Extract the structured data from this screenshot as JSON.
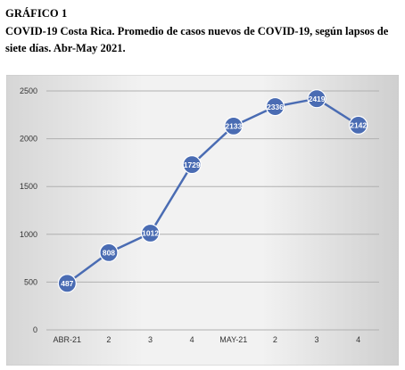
{
  "figure": {
    "label": "GRÁFICO 1",
    "caption": "COVID-19 Costa Rica. Promedio de casos nuevos de COVID-19, según lapsos de siete días. Abr-May 2021."
  },
  "chart_data": {
    "type": "line",
    "title": "",
    "xlabel": "",
    "ylabel": "",
    "categories": [
      "ABR-21",
      "2",
      "3",
      "4",
      "MAY-21",
      "2",
      "3",
      "4"
    ],
    "series": [
      {
        "values": [
          487,
          808,
          1012,
          1729,
          2133,
          2336,
          2419,
          2142
        ]
      }
    ],
    "ylim": [
      0,
      2500
    ],
    "yticks": [
      0,
      500,
      1000,
      1500,
      2000,
      2500
    ],
    "grid": true,
    "legend": "none",
    "colors": {
      "line": "#4a6cb3",
      "marker": "#4a6cb3",
      "label_text": "#ffffff",
      "grid": "#b0b0b0"
    }
  }
}
